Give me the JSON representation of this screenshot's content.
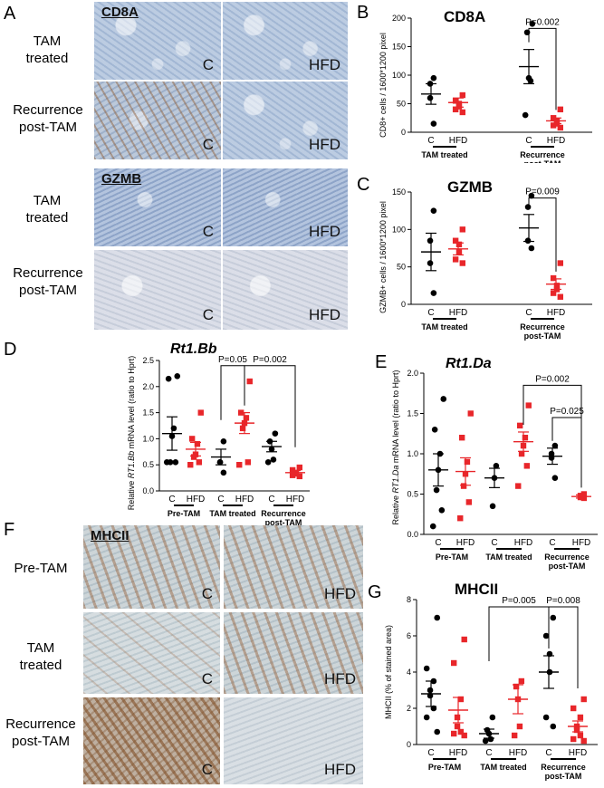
{
  "panels": {
    "A": {
      "letter": "A",
      "row_labels": [
        {
          "l1": "TAM",
          "l2": "treated"
        },
        {
          "l1": "Recurrence",
          "l2": "post-TAM"
        },
        {
          "l1": "TAM",
          "l2": "treated"
        },
        {
          "l1": "Recurrence",
          "l2": "post-TAM"
        }
      ],
      "stain1": "CD8A",
      "stain2": "GZMB",
      "c": "C",
      "hfd": "HFD"
    },
    "F": {
      "letter": "F",
      "stain": "MHCII",
      "row_labels": [
        {
          "l1": "Pre-TAM",
          "l2": ""
        },
        {
          "l1": "TAM",
          "l2": "treated"
        },
        {
          "l1": "Recurrence",
          "l2": "post-TAM"
        }
      ],
      "c": "C",
      "hfd": "HFD"
    }
  },
  "colors": {
    "control": "#000000",
    "hfd": "#e8262a"
  },
  "chart_data": [
    {
      "id": "B",
      "letter": "B",
      "type": "scatter",
      "title": "CD8A",
      "ylabel": "CD8+ cells / 1600*1200 pixel",
      "ylim": [
        0,
        200
      ],
      "yticks": [
        0,
        50,
        100,
        150,
        200
      ],
      "x_labels": [
        "C",
        "HFD",
        "C",
        "HFD"
      ],
      "groups": [
        "TAM treated",
        "Recurrence post-TAM"
      ],
      "group_lines": [
        [
          "TAM treated"
        ],
        [
          "Recurrence",
          "post-TAM"
        ]
      ],
      "series": [
        {
          "values": [
            95,
            85,
            60,
            15
          ],
          "mean": 67,
          "sem": 18
        },
        {
          "values": [
            65,
            55,
            50,
            45,
            40,
            35
          ],
          "mean": 52,
          "sem": 8
        },
        {
          "values": [
            190,
            175,
            95,
            90,
            30
          ],
          "mean": 115,
          "sem": 30
        },
        {
          "values": [
            40,
            25,
            20,
            15,
            12,
            8
          ],
          "mean": 20,
          "sem": 5
        }
      ],
      "annotations": [
        {
          "text": "P=0.002",
          "from": 2,
          "to": 3,
          "y": 182
        }
      ]
    },
    {
      "id": "C",
      "letter": "C",
      "type": "scatter",
      "title": "GZMB",
      "ylabel": "GZMB+ cells / 1600*1200 pixel",
      "ylim": [
        0,
        150
      ],
      "yticks": [
        0,
        50,
        100,
        150
      ],
      "x_labels": [
        "C",
        "HFD",
        "C",
        "HFD"
      ],
      "groups": [
        "TAM treated",
        "Recurrence post-TAM"
      ],
      "group_lines": [
        [
          "TAM treated"
        ],
        [
          "Recurrence",
          "post-TAM"
        ]
      ],
      "series": [
        {
          "values": [
            125,
            85,
            55,
            15
          ],
          "mean": 70,
          "sem": 25
        },
        {
          "values": [
            100,
            85,
            80,
            70,
            60,
            55
          ],
          "mean": 74,
          "sem": 8
        },
        {
          "values": [
            145,
            130,
            85,
            75
          ],
          "mean": 102,
          "sem": 18
        },
        {
          "values": [
            55,
            35,
            25,
            20,
            15,
            10
          ],
          "mean": 27,
          "sem": 7
        }
      ],
      "annotations": [
        {
          "text": "P=0.009",
          "from": 2,
          "to": 3,
          "y": 142
        }
      ]
    },
    {
      "id": "D",
      "letter": "D",
      "type": "scatter",
      "title": "Rt1.Bb",
      "ylabel_parts": [
        "Relative ",
        "RT1.Bb",
        " mRNA level (ratio to Hprt)"
      ],
      "ylim": [
        0,
        2.5
      ],
      "yticks": [
        0.0,
        0.5,
        1.0,
        1.5,
        2.0,
        2.5
      ],
      "ytick_labels": [
        "0.0",
        "0.5",
        "1.0",
        "1.5",
        "2.0",
        "2.5"
      ],
      "x_labels": [
        "C",
        "HFD",
        "C",
        "HFD",
        "C",
        "HFD"
      ],
      "groups": [
        "Pre-TAM",
        "TAM treated",
        "Recurrence post-TAM"
      ],
      "group_lines": [
        [
          "Pre-TAM"
        ],
        [
          "TAM treated"
        ],
        [
          "Recurrence",
          "post-TAM"
        ]
      ],
      "series": [
        {
          "values": [
            2.2,
            2.15,
            1.2,
            1.05,
            0.55,
            0.55,
            0.55
          ],
          "mean": 1.1,
          "sem": 0.32
        },
        {
          "values": [
            1.5,
            1.0,
            0.9,
            0.7,
            0.65,
            0.55,
            0.5
          ],
          "mean": 0.8,
          "sem": 0.13
        },
        {
          "values": [
            0.95,
            0.55,
            0.55,
            0.35
          ],
          "mean": 0.65,
          "sem": 0.15
        },
        {
          "values": [
            2.1,
            1.5,
            1.4,
            1.3,
            1.2,
            0.55,
            0.5
          ],
          "mean": 1.3,
          "sem": 0.2
        },
        {
          "values": [
            1.1,
            0.95,
            0.8,
            0.6,
            0.55
          ],
          "mean": 0.85,
          "sem": 0.1
        },
        {
          "values": [
            0.45,
            0.4,
            0.35,
            0.33,
            0.3,
            0.28
          ],
          "mean": 0.35,
          "sem": 0.04
        }
      ],
      "annotations": [
        {
          "text": "P=0.05",
          "from": 2,
          "to": 3,
          "y": 2.4
        },
        {
          "text": "P=0.002",
          "from": 3,
          "to": 5,
          "y": 2.4
        }
      ]
    },
    {
      "id": "E",
      "letter": "E",
      "type": "scatter",
      "title": "Rt1.Da",
      "ylabel_parts": [
        "Relative ",
        "RT1.Da",
        " mRNA level (ratio to Hprt)"
      ],
      "ylim": [
        0,
        2.0
      ],
      "yticks": [
        0.0,
        0.5,
        1.0,
        1.5,
        2.0
      ],
      "ytick_labels": [
        "0.0",
        "0.5",
        "1.0",
        "1.5",
        "2.0"
      ],
      "x_labels": [
        "C",
        "HFD",
        "C",
        "HFD",
        "C",
        "HFD"
      ],
      "groups": [
        "Pre-TAM",
        "TAM treated",
        "Recurrence post-TAM"
      ],
      "group_lines": [
        [
          "Pre-TAM"
        ],
        [
          "TAM treated"
        ],
        [
          "Recurrence",
          "post-TAM"
        ]
      ],
      "series": [
        {
          "values": [
            1.68,
            1.3,
            1.0,
            0.8,
            0.55,
            0.3,
            0.1
          ],
          "mean": 0.8,
          "sem": 0.2
        },
        {
          "values": [
            1.5,
            1.2,
            0.9,
            0.75,
            0.6,
            0.4,
            0.2
          ],
          "mean": 0.78,
          "sem": 0.17
        },
        {
          "values": [
            0.85,
            0.7,
            0.35
          ],
          "mean": 0.7,
          "sem": 0.12
        },
        {
          "values": [
            1.6,
            1.35,
            1.2,
            1.1,
            1.0,
            0.85,
            0.6
          ],
          "mean": 1.15,
          "sem": 0.12
        },
        {
          "values": [
            1.1,
            1.0,
            0.95,
            0.7
          ],
          "mean": 0.97,
          "sem": 0.1
        },
        {
          "values": [
            0.5,
            0.48,
            0.46,
            0.45
          ],
          "mean": 0.47,
          "sem": 0.02
        }
      ],
      "annotations": [
        {
          "text": "P=0.002",
          "from": 3,
          "to": 5,
          "y": 1.85
        },
        {
          "text": "P=0.025",
          "from": 4,
          "to": 5,
          "y": 1.45
        }
      ]
    },
    {
      "id": "G",
      "letter": "G",
      "type": "scatter",
      "title": "MHCII",
      "ylabel": "MHCII (% of stained area)",
      "ylim": [
        0,
        8
      ],
      "yticks": [
        0,
        2,
        4,
        6,
        8
      ],
      "x_labels": [
        "C",
        "HFD",
        "C",
        "HFD",
        "C",
        "HFD"
      ],
      "groups": [
        "Pre-TAM",
        "TAM treated",
        "Recurrence post-TAM"
      ],
      "group_lines": [
        [
          "Pre-TAM"
        ],
        [
          "TAM treated"
        ],
        [
          "Recurrence",
          "post-TAM"
        ]
      ],
      "series": [
        {
          "values": [
            7.0,
            4.2,
            3.5,
            3.0,
            2.7,
            2.0,
            1.5,
            0.7
          ],
          "mean": 2.8,
          "sem": 0.7
        },
        {
          "values": [
            5.8,
            4.5,
            2.5,
            1.5,
            1.0,
            0.7,
            0.6,
            0.5
          ],
          "mean": 1.9,
          "sem": 0.7
        },
        {
          "values": [
            1.5,
            0.8,
            0.6,
            0.3,
            0.2
          ],
          "mean": 0.6,
          "sem": 0.25
        },
        {
          "values": [
            3.5,
            3.2,
            2.5,
            1.0,
            0.5
          ],
          "mean": 2.5,
          "sem": 0.8
        },
        {
          "values": [
            7.0,
            6.0,
            5.0,
            4.0,
            1.5,
            1.0
          ],
          "mean": 4.0,
          "sem": 0.9
        },
        {
          "values": [
            2.5,
            2.0,
            1.5,
            1.0,
            0.8,
            0.5,
            0.3,
            0.2
          ],
          "mean": 1.0,
          "sem": 0.3
        }
      ],
      "annotations": [
        {
          "text": "P=0.005",
          "from": 2,
          "to": 4,
          "y": 7.6
        },
        {
          "text": "P=0.008",
          "from": 4,
          "to": 5,
          "y": 7.6
        }
      ]
    }
  ]
}
